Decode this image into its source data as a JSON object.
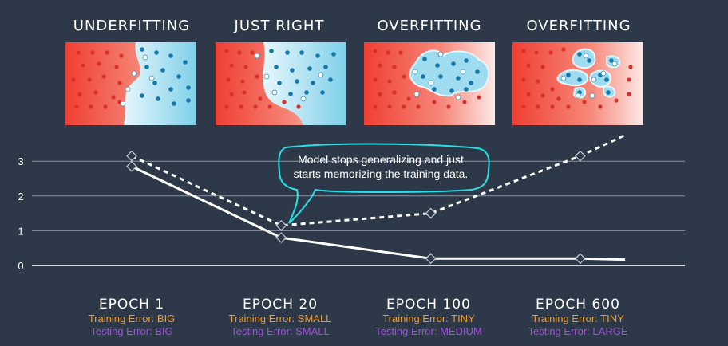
{
  "panels": [
    {
      "title": "UNDERFITTING"
    },
    {
      "title": "JUST RIGHT"
    },
    {
      "title": "OVERFITTING"
    },
    {
      "title": "OVERFITTING"
    }
  ],
  "epochs": [
    {
      "name": "EPOCH 1",
      "training": "Training Error: BIG",
      "testing": "Testing Error: BIG"
    },
    {
      "name": "EPOCH 20",
      "training": "Training Error: SMALL",
      "testing": "Testing Error: SMALL"
    },
    {
      "name": "EPOCH 100",
      "training": "Training Error: TINY",
      "testing": "Testing Error: MEDIUM"
    },
    {
      "name": "EPOCH 600",
      "training": "Training Error: TINY",
      "testing": "Testing Error: LARGE"
    }
  ],
  "annotation": {
    "line1": "Model stops generalizing and just",
    "line2": "starts memorizing the training data."
  },
  "colors": {
    "background": "#2d3848",
    "training": "#f59a1e",
    "testing": "#a44fe0",
    "annotation": "#27e0e6",
    "red_region": "#f0483a",
    "blue_region": "#7fd0ea"
  },
  "chart_data": {
    "type": "line",
    "categories": [
      "EPOCH 1",
      "EPOCH 20",
      "EPOCH 100",
      "EPOCH 600"
    ],
    "ylim": [
      0,
      3.3
    ],
    "yticks": [
      "0",
      "1",
      "2",
      "3"
    ],
    "grid": true,
    "series": [
      {
        "style": "solid",
        "x": [
          0,
          1,
          2,
          3,
          3.3
        ],
        "values": [
          2.85,
          0.8,
          0.2,
          0.2,
          0.17
        ]
      },
      {
        "style": "dashed",
        "x": [
          0,
          1,
          2,
          3,
          3.3
        ],
        "values": [
          3.15,
          1.15,
          1.5,
          3.15,
          3.75
        ]
      }
    ]
  }
}
